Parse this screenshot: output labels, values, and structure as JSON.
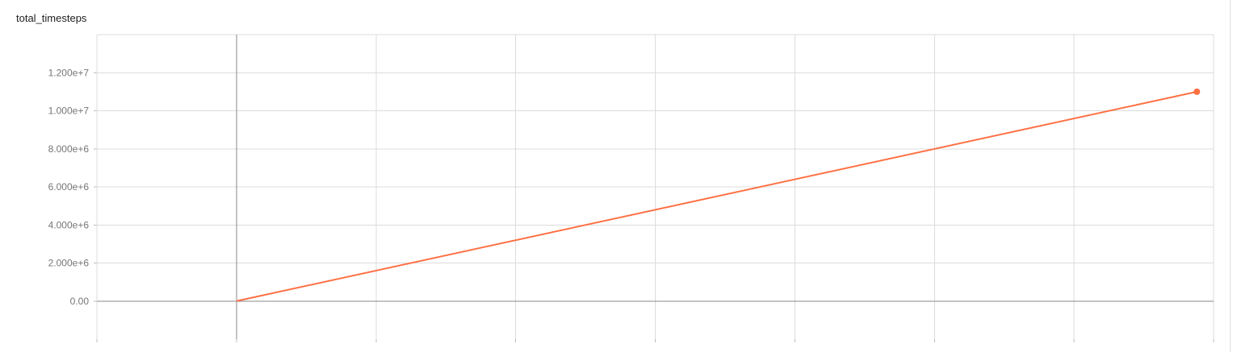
{
  "chart_data": {
    "type": "line",
    "title": "total_timesteps",
    "xlabel": "",
    "ylabel": "",
    "xlim": [
      -1,
      7
    ],
    "ylim": [
      -2000000,
      14000000
    ],
    "x_tick_values": [
      -1,
      0,
      1,
      2,
      3,
      4,
      5,
      6,
      7
    ],
    "y_tick_labels": [
      "0.00",
      "2.000e+6",
      "4.000e+6",
      "6.000e+6",
      "8.000e+6",
      "1.000e+7",
      "1.200e+7"
    ],
    "y_tick_values": [
      0,
      2000000,
      4000000,
      6000000,
      8000000,
      10000000,
      12000000
    ],
    "grid": true,
    "series": [
      {
        "color": "#ff7043",
        "x": [
          0,
          6.88
        ],
        "y": [
          0,
          11000000
        ]
      }
    ]
  }
}
